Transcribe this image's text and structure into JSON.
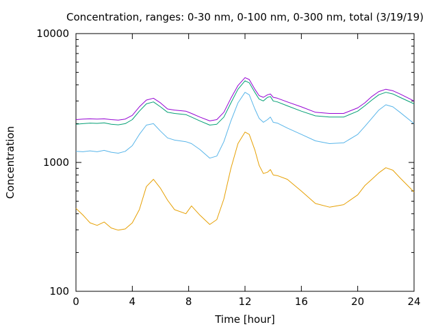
{
  "chart_data": {
    "type": "line",
    "title": "Concentration, ranges: 0-30 nm, 0-100 nm, 0-300 nm, total (3/19/19)",
    "xlabel": "Time [hour]",
    "ylabel": "Concentration",
    "xlim": [
      0,
      24
    ],
    "ylim": [
      100,
      10000
    ],
    "yscale": "log",
    "x_ticks": [
      0,
      4,
      8,
      12,
      16,
      20,
      24
    ],
    "y_ticks": [
      100,
      1000,
      10000
    ],
    "y_tick_labels": [
      "100",
      "1000",
      "10000"
    ],
    "grid": false,
    "legend": "none",
    "series": [
      {
        "color": "#e69f00",
        "x": [
          0,
          0.5,
          1,
          1.5,
          2,
          2.5,
          3,
          3.5,
          4,
          4.5,
          5,
          5.5,
          6,
          6.5,
          7,
          7.8,
          8.2,
          8.8,
          9.5,
          10,
          10.5,
          11,
          11.5,
          12,
          12.3,
          12.7,
          13,
          13.3,
          13.6,
          13.8,
          14,
          14.3,
          15,
          16,
          17,
          18,
          19,
          20,
          20.5,
          21,
          21.5,
          22,
          22.5,
          23,
          24
        ],
        "values": [
          440,
          390,
          340,
          325,
          345,
          310,
          298,
          305,
          340,
          430,
          650,
          740,
          630,
          510,
          430,
          400,
          460,
          390,
          330,
          360,
          520,
          900,
          1400,
          1720,
          1650,
          1250,
          950,
          820,
          840,
          880,
          800,
          790,
          740,
          600,
          480,
          450,
          470,
          560,
          660,
          740,
          830,
          910,
          870,
          760,
          590
        ]
      },
      {
        "color": "#56b4e9",
        "x": [
          0,
          0.5,
          1,
          1.5,
          2,
          2.5,
          3,
          3.5,
          4,
          4.5,
          5,
          5.5,
          6,
          6.5,
          7,
          7.8,
          8.2,
          8.8,
          9.5,
          10,
          10.5,
          11,
          11.5,
          12,
          12.3,
          12.7,
          13,
          13.3,
          13.6,
          13.8,
          14,
          14.3,
          15,
          16,
          17,
          18,
          19,
          20,
          20.5,
          21,
          21.5,
          22,
          22.5,
          23,
          24
        ],
        "values": [
          1220,
          1210,
          1230,
          1210,
          1240,
          1200,
          1180,
          1220,
          1350,
          1650,
          1950,
          2000,
          1750,
          1550,
          1490,
          1450,
          1400,
          1260,
          1080,
          1120,
          1450,
          2100,
          2900,
          3500,
          3350,
          2600,
          2200,
          2050,
          2150,
          2250,
          2050,
          2020,
          1850,
          1650,
          1470,
          1400,
          1420,
          1650,
          1900,
          2200,
          2550,
          2800,
          2700,
          2450,
          2000
        ]
      },
      {
        "color": "#009e73",
        "x": [
          0,
          0.5,
          1,
          1.5,
          2,
          2.5,
          3,
          3.5,
          4,
          4.5,
          5,
          5.5,
          6,
          6.5,
          7,
          7.8,
          8.2,
          8.8,
          9.5,
          10,
          10.5,
          11,
          11.5,
          12,
          12.3,
          12.7,
          13,
          13.3,
          13.6,
          13.8,
          14,
          14.3,
          15,
          16,
          17,
          18,
          19,
          20,
          20.5,
          21,
          21.5,
          22,
          22.5,
          23,
          24
        ],
        "values": [
          1980,
          2000,
          2020,
          2010,
          2030,
          1980,
          1960,
          2000,
          2150,
          2500,
          2850,
          2950,
          2700,
          2450,
          2400,
          2350,
          2250,
          2100,
          1950,
          1980,
          2250,
          2900,
          3700,
          4300,
          4150,
          3500,
          3100,
          3000,
          3200,
          3250,
          3000,
          2950,
          2750,
          2500,
          2300,
          2250,
          2250,
          2500,
          2750,
          3050,
          3350,
          3500,
          3400,
          3200,
          2850
        ]
      },
      {
        "color": "#9400d3",
        "x": [
          0,
          0.5,
          1,
          1.5,
          2,
          2.5,
          3,
          3.5,
          4,
          4.5,
          5,
          5.5,
          6,
          6.5,
          7,
          7.8,
          8.2,
          8.8,
          9.5,
          10,
          10.5,
          11,
          11.5,
          12,
          12.3,
          12.7,
          13,
          13.3,
          13.6,
          13.8,
          14,
          14.3,
          15,
          16,
          17,
          18,
          19,
          20,
          20.5,
          21,
          21.5,
          22,
          22.5,
          23,
          24
        ],
        "values": [
          2150,
          2170,
          2180,
          2170,
          2180,
          2150,
          2130,
          2170,
          2320,
          2700,
          3050,
          3150,
          2900,
          2600,
          2550,
          2500,
          2400,
          2250,
          2100,
          2150,
          2450,
          3150,
          3950,
          4550,
          4400,
          3700,
          3300,
          3200,
          3350,
          3400,
          3200,
          3150,
          2950,
          2700,
          2450,
          2400,
          2400,
          2650,
          2900,
          3250,
          3550,
          3700,
          3600,
          3400,
          3000
        ]
      }
    ]
  }
}
